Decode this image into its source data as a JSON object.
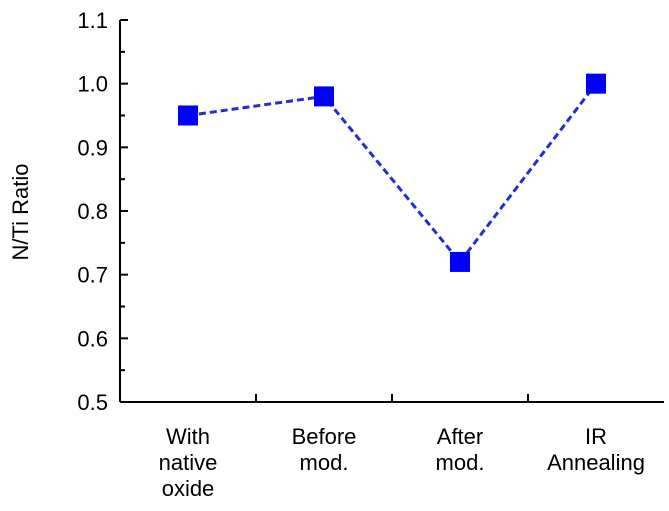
{
  "chart_data": {
    "type": "line",
    "categories": [
      [
        "With",
        "native",
        "oxide"
      ],
      [
        "Before",
        "mod."
      ],
      [
        "After",
        "mod."
      ],
      [
        "IR",
        "Annealing"
      ]
    ],
    "series": [
      {
        "values": [
          0.95,
          0.98,
          0.72,
          1.0
        ]
      }
    ],
    "title": "",
    "xlabel": "",
    "ylabel": "N/Ti Ratio",
    "ylim": [
      0.5,
      1.1
    ],
    "yticks": [
      "0.5",
      "0.6",
      "0.7",
      "0.8",
      "0.9",
      "1.0",
      "1.1"
    ],
    "grid": false,
    "legend": "none",
    "line_style": "dashed",
    "marker": "square",
    "series_color": "#0000FF",
    "line_color": "#1F2FD0"
  }
}
